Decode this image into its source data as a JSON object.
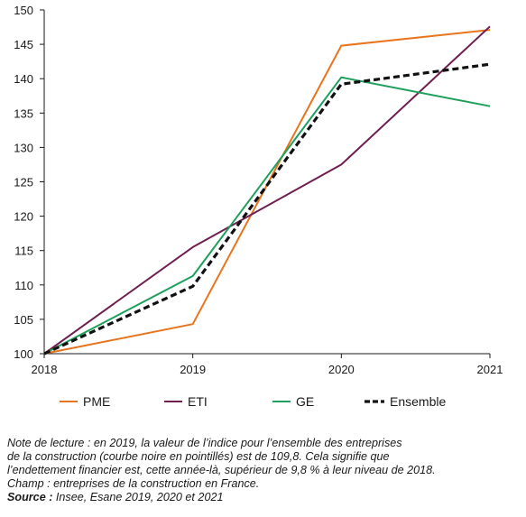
{
  "chart_data": {
    "type": "line",
    "x": [
      "2018",
      "2019",
      "2020",
      "2021"
    ],
    "ylim": [
      100,
      150
    ],
    "yticks": [
      100,
      105,
      110,
      115,
      120,
      125,
      130,
      135,
      140,
      145,
      150
    ],
    "grid": false,
    "legend_position": "bottom",
    "series": [
      {
        "name": "PME",
        "values": [
          100,
          104.3,
          144.8,
          147.1
        ],
        "color": "#e8741e",
        "dashed": false
      },
      {
        "name": "ETI",
        "values": [
          100,
          115.5,
          127.5,
          147.6
        ],
        "color": "#6e1f4f",
        "dashed": false
      },
      {
        "name": "GE",
        "values": [
          100,
          111.3,
          140.2,
          136.0
        ],
        "color": "#1ea05c",
        "dashed": false
      },
      {
        "name": "Ensemble",
        "values": [
          100,
          109.8,
          139.2,
          142.1
        ],
        "color": "#111111",
        "dashed": true
      }
    ]
  },
  "notes": {
    "line1": "Note de lecture : en 2019, la valeur de l’indice pour l’ensemble des entreprises",
    "line2": "de la construction (courbe noire en pointillés) est de 109,8. Cela signifie que",
    "line3": "l’endettement financier est, cette année-là, supérieur de 9,8 % à leur niveau de 2018.",
    "line4": "Champ : entreprises de la construction en France.",
    "source_label": "Source :",
    "source_text": " Insee, Esane 2019, 2020 et 2021"
  }
}
